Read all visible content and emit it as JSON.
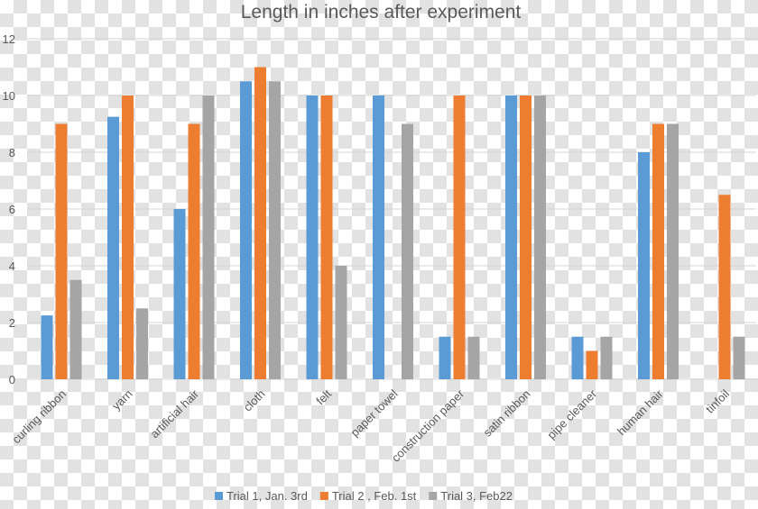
{
  "chart_data": {
    "type": "bar",
    "title": "Length in inches after experiment",
    "xlabel": "",
    "ylabel": "",
    "ylim": [
      0,
      12
    ],
    "yticks": [
      0,
      2,
      4,
      6,
      8,
      10,
      12
    ],
    "grid": true,
    "legend_position": "bottom",
    "categories": [
      "curling ribbon",
      "yarn",
      "artificial hair",
      "cloth",
      "felt",
      "paper towel",
      "construction paper",
      "satin ribbon",
      "pipe cleaner",
      "human hair",
      "tinfoil"
    ],
    "series": [
      {
        "name": "Trial 1, Jan. 3rd",
        "color": "#5b9bd5",
        "values": [
          2.25,
          9.25,
          6,
          10.5,
          10,
          10,
          1.5,
          10,
          1.5,
          8,
          null
        ]
      },
      {
        "name": "Trial 2 , Feb. 1st",
        "color": "#ed7d31",
        "values": [
          9,
          10,
          9,
          11,
          10,
          null,
          10,
          10,
          1,
          9,
          6.5
        ]
      },
      {
        "name": "Trial 3, Feb22",
        "color": "#a5a5a5",
        "values": [
          3.5,
          2.5,
          10,
          10.5,
          4,
          9,
          1.5,
          10,
          1.5,
          9,
          1.5
        ]
      }
    ]
  }
}
